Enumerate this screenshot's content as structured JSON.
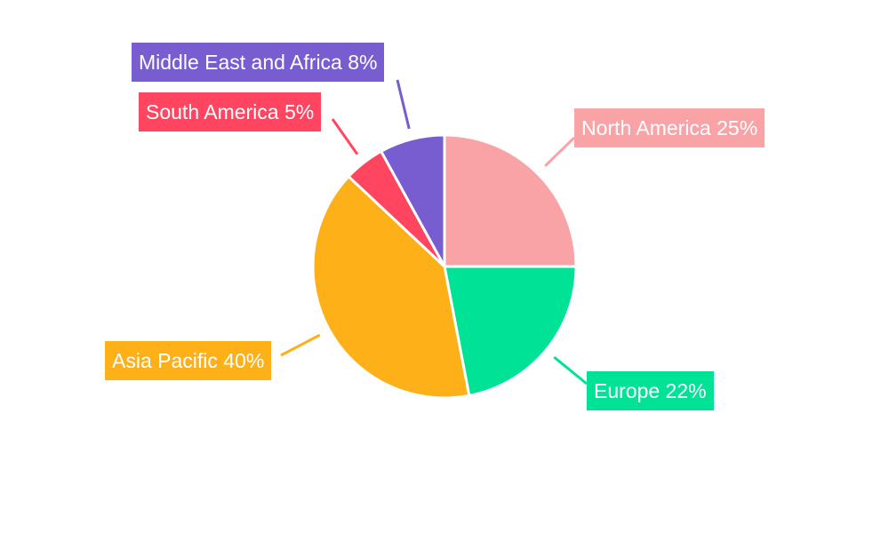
{
  "chart_data": {
    "type": "pie",
    "title": "",
    "start_angle": "12 o'clock, clockwise",
    "categories": [
      "North America",
      "Europe",
      "Asia Pacific",
      "South America",
      "Middle East and Africa"
    ],
    "values": [
      25,
      22,
      40,
      5,
      8
    ],
    "colors": [
      "#f9a3a6",
      "#00e396",
      "#feb019",
      "#ff4560",
      "#775dd0"
    ],
    "labels": [
      "North America 25%",
      "Europe 22%",
      "Asia Pacific 40%",
      "South America 5%",
      "Middle East and Africa 8%"
    ],
    "legend": "none"
  }
}
